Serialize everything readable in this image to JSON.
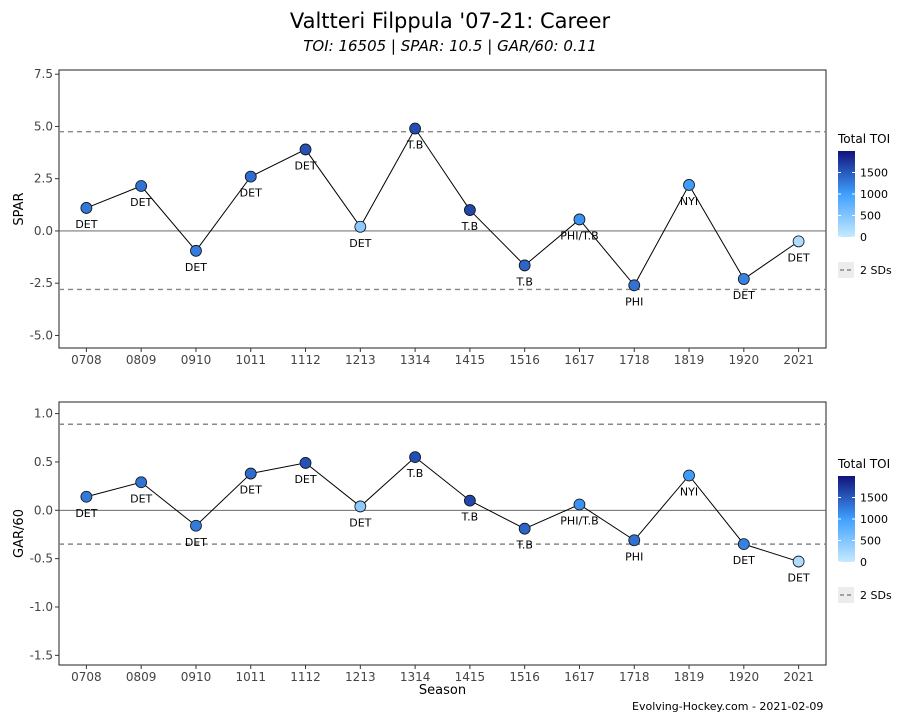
{
  "header": {
    "title": "Valtteri Filppula '07-21: Career",
    "subtitle": "TOI: 16505 | SPAR: 10.5 | GAR/60: 0.11"
  },
  "footer": {
    "credit": "Evolving-Hockey.com - 2021-02-09"
  },
  "colors": {
    "low": "#c6e9ff",
    "mid": "#3fa0ff",
    "high": "#12137a",
    "line": "#000000",
    "ref": "#888888"
  },
  "chart_data": [
    {
      "type": "line",
      "xlabel": "",
      "ylabel": "SPAR",
      "ylim": [
        -5.6,
        7.7
      ],
      "yticks": [
        -5.0,
        -2.5,
        0.0,
        2.5,
        5.0,
        7.5
      ],
      "ytick_labels": [
        "-5.0",
        "-2.5",
        "0.0",
        "2.5",
        "5.0",
        "7.5"
      ],
      "categories": [
        "0708",
        "0809",
        "0910",
        "1011",
        "1112",
        "1213",
        "1314",
        "1415",
        "1516",
        "1617",
        "1718",
        "1819",
        "1920",
        "2021"
      ],
      "values": [
        1.1,
        2.15,
        -0.95,
        2.6,
        3.9,
        0.2,
        4.9,
        1.0,
        -1.65,
        0.55,
        -2.6,
        2.2,
        -2.3,
        -0.5
      ],
      "teams": [
        "DET",
        "DET",
        "DET",
        "DET",
        "DET",
        "DET",
        "T.B",
        "T.B",
        "T.B",
        "PHI/T.B",
        "PHI",
        "NYI",
        "DET",
        "DET"
      ],
      "label_pos": [
        "below",
        "below",
        "below",
        "below",
        "below",
        "below",
        "below",
        "below",
        "below",
        "below",
        "below",
        "below",
        "below",
        "below"
      ],
      "toi": [
        1280,
        1320,
        1260,
        1370,
        1560,
        420,
        1590,
        1640,
        1420,
        1100,
        1330,
        1020,
        1210,
        180
      ],
      "ref_lines": [
        4.75,
        -2.8
      ],
      "legend": {
        "title": "Total TOI",
        "ticks": [
          "0",
          "500",
          "1000",
          "1500"
        ],
        "dash_label": "2 SDs"
      }
    },
    {
      "type": "line",
      "xlabel": "Season",
      "ylabel": "GAR/60",
      "ylim": [
        -1.6,
        1.12
      ],
      "yticks": [
        -1.5,
        -1.0,
        -0.5,
        0.0,
        0.5,
        1.0
      ],
      "ytick_labels": [
        "-1.5",
        "-1.0",
        "-0.5",
        "0.0",
        "0.5",
        "1.0"
      ],
      "categories": [
        "0708",
        "0809",
        "0910",
        "1011",
        "1112",
        "1213",
        "1314",
        "1415",
        "1516",
        "1617",
        "1718",
        "1819",
        "1920",
        "2021"
      ],
      "values": [
        0.14,
        0.29,
        -0.16,
        0.38,
        0.49,
        0.04,
        0.55,
        0.1,
        -0.19,
        0.06,
        -0.31,
        0.36,
        -0.35,
        -0.53
      ],
      "teams": [
        "DET",
        "DET",
        "DET",
        "DET",
        "DET",
        "DET",
        "T.B",
        "T.B",
        "T.B",
        "PHI/T.B",
        "PHI",
        "NYI",
        "DET",
        "DET"
      ],
      "toi": [
        1280,
        1320,
        1260,
        1370,
        1560,
        420,
        1590,
        1640,
        1420,
        1100,
        1330,
        1020,
        1210,
        180
      ],
      "ref_lines": [
        0.89,
        -0.35
      ],
      "legend": {
        "title": "Total TOI",
        "ticks": [
          "0",
          "500",
          "1000",
          "1500"
        ],
        "dash_label": "2 SDs"
      }
    }
  ]
}
